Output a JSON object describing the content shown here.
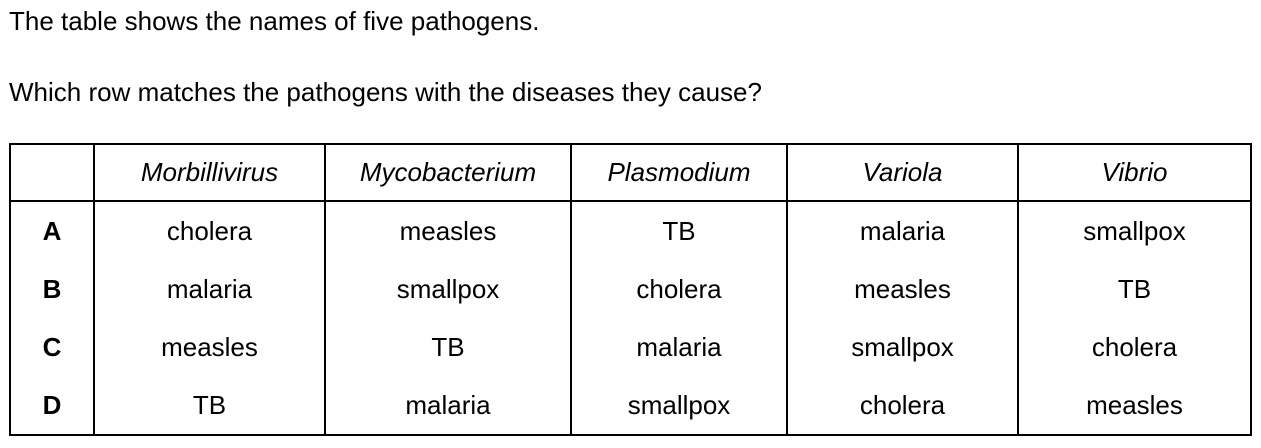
{
  "intro": "The table shows the names of five pathogens.",
  "question": "Which row matches the pathogens with the diseases they cause?",
  "table": {
    "columns": [
      "",
      "Morbillivirus",
      "Mycobacterium",
      "Plasmodium",
      "Variola",
      "Vibrio"
    ],
    "rows": [
      {
        "label": "A",
        "cells": [
          "cholera",
          "measles",
          "TB",
          "malaria",
          "smallpox"
        ]
      },
      {
        "label": "B",
        "cells": [
          "malaria",
          "smallpox",
          "cholera",
          "measles",
          "TB"
        ]
      },
      {
        "label": "C",
        "cells": [
          "measles",
          "TB",
          "malaria",
          "smallpox",
          "cholera"
        ]
      },
      {
        "label": "D",
        "cells": [
          "TB",
          "malaria",
          "smallpox",
          "cholera",
          "measles"
        ]
      }
    ]
  }
}
